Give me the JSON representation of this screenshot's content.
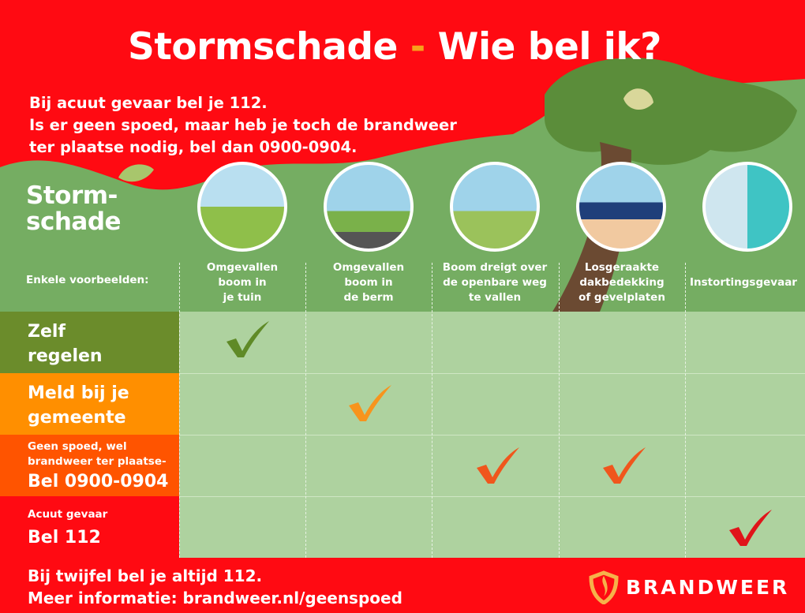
{
  "title": {
    "part1": "Stormschade",
    "dash": "-",
    "part2": "Wie bel ik?"
  },
  "intro": {
    "line1": "Bij acuut gevaar bel je 112.",
    "line2": "Is er geen spoed, maar heb je toch de brandweer",
    "line3": "ter plaatse nodig, bel dan 0900-0904."
  },
  "header": {
    "storm_line1": "Storm-",
    "storm_line2": "schade",
    "examples": "Enkele voorbeelden:"
  },
  "columns": [
    {
      "lines": [
        "Omgevallen",
        "boom in",
        "je tuin"
      ],
      "icon": "fallen-tree-garden-icon"
    },
    {
      "lines": [
        "Omgevallen",
        "boom in",
        "de berm"
      ],
      "icon": "fallen-tree-roadside-icon"
    },
    {
      "lines": [
        "Boom dreigt over",
        "de openbare weg",
        "te vallen"
      ],
      "icon": "tree-over-road-icon"
    },
    {
      "lines": [
        "Losgeraakte",
        "dakbedekking",
        "of gevelplaten"
      ],
      "icon": "damaged-roof-icon"
    },
    {
      "lines": [
        "Instortingsgevaar"
      ],
      "icon": "collapse-danger-icon"
    }
  ],
  "rows": [
    {
      "line1": "Zelf",
      "line2": "regelen",
      "color": "#6b8c2b",
      "check_column": 1
    },
    {
      "line1": "Meld bij je",
      "line2": "gemeente",
      "color": "#ff8f00",
      "check_column": 2
    },
    {
      "small1": "Geen spoed, wel",
      "small2": "brandweer ter plaatse-",
      "big": "Bel 0900-0904",
      "color": "#ff5400",
      "check_columns": [
        3,
        4
      ]
    },
    {
      "small1": "Acuut gevaar",
      "big": "Bel 112",
      "color": "#ff0a12",
      "check_column": 5
    }
  ],
  "check_colors": {
    "row1": "#5f8a27",
    "row2": "#f7941d",
    "row3": "#f0561c",
    "row4": "#e0141a"
  },
  "footer": {
    "line1": "Bij twijfel bel je altijd 112.",
    "line2": "Meer informatie: brandweer.nl/geenspoed"
  },
  "logo": {
    "text": "BRANDWEER"
  }
}
